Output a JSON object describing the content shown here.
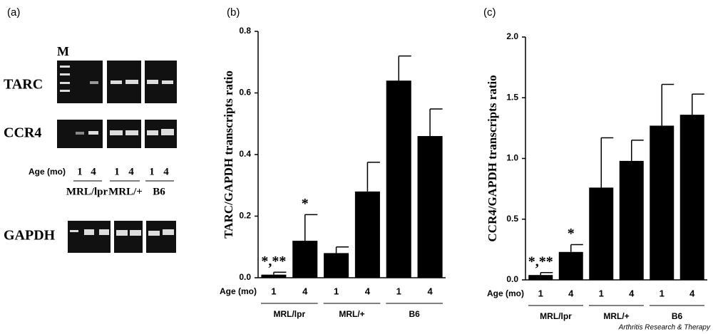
{
  "gel_panel": {
    "panel_label": "(a)",
    "marker": "M",
    "rows": [
      "TARC",
      "CCR4",
      "GAPDH"
    ],
    "age_label": "Age (mo)",
    "lanes": [
      "1",
      "4",
      "1",
      "4",
      "1",
      "4"
    ],
    "groups": [
      "MRL/lpr",
      "MRL/+",
      "B6"
    ]
  },
  "chart_data": [
    {
      "type": "bar",
      "panel_label": "(b)",
      "y_label": "TARC/GAPDH transcripts ratio",
      "x_label": "Age (mo)",
      "categories": [
        "1",
        "4",
        "1",
        "4",
        "1",
        "4"
      ],
      "groups": [
        "MRL/lpr",
        "MRL/+",
        "B6"
      ],
      "values": [
        0.01,
        0.12,
        0.08,
        0.28,
        0.64,
        0.46
      ],
      "errors": [
        0.008,
        0.085,
        0.02,
        0.095,
        0.08,
        0.088
      ],
      "annotations": [
        "*,**",
        "*",
        null,
        null,
        null,
        null
      ],
      "color": "#000000",
      "ylim": [
        0,
        0.8
      ],
      "yticks": [
        {
          "value": 0,
          "label": "0.0"
        },
        0.2,
        0.4,
        0.6,
        0.8
      ]
    },
    {
      "type": "bar",
      "panel_label": "(c)",
      "y_label": "CCR4/GAPDH transcripts ratio",
      "x_label": "Age (mo)",
      "categories": [
        "1",
        "4",
        "1",
        "4",
        "1",
        "4"
      ],
      "groups": [
        "MRL/lpr",
        "MRL/+",
        "B6"
      ],
      "values": [
        0.04,
        0.23,
        0.76,
        0.98,
        1.27,
        1.36
      ],
      "errors": [
        0.02,
        0.06,
        0.41,
        0.17,
        0.34,
        0.17
      ],
      "annotations": [
        "*,**",
        "*",
        null,
        null,
        null,
        null
      ],
      "color": "#000000",
      "ylim": [
        0,
        2
      ],
      "yticks": [
        {
          "value": 0,
          "label": "0.0"
        },
        0.5,
        {
          "value": 1,
          "label": "1.0"
        },
        1.5,
        {
          "value": 2,
          "label": "2.0"
        }
      ]
    }
  ],
  "footer": "Arthritis Research & Therapy"
}
